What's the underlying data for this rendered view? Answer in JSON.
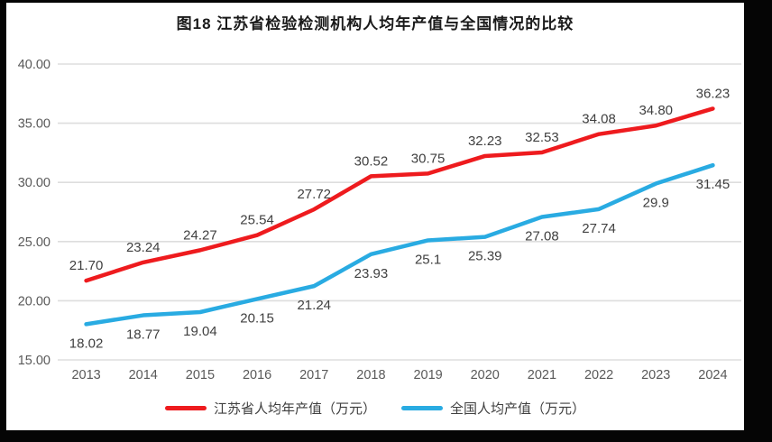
{
  "chart_data": {
    "type": "line",
    "title": "图18  江苏省检验检测机构人均年产值与全国情况的比较",
    "categories": [
      "2013",
      "2014",
      "2015",
      "2016",
      "2017",
      "2018",
      "2019",
      "2020",
      "2021",
      "2022",
      "2023",
      "2024"
    ],
    "series": [
      {
        "name": "江苏省人均年产值（万元）",
        "color": "#ee1b1e",
        "values": [
          21.7,
          23.24,
          24.27,
          25.54,
          27.72,
          30.52,
          30.75,
          32.23,
          32.53,
          34.08,
          34.8,
          36.23
        ],
        "labels": [
          "21.70",
          "23.24",
          "24.27",
          "25.54",
          "27.72",
          "30.52",
          "30.75",
          "32.23",
          "32.53",
          "34.08",
          "34.80",
          "36.23"
        ],
        "label_position": "above"
      },
      {
        "name": "全国人均产值（万元）",
        "color": "#29abe2",
        "values": [
          18.02,
          18.77,
          19.04,
          20.15,
          21.24,
          23.93,
          25.1,
          25.39,
          27.08,
          27.74,
          29.9,
          31.45
        ],
        "labels": [
          "18.02",
          "18.77",
          "19.04",
          "20.15",
          "21.24",
          "23.93",
          "25.1",
          "25.39",
          "27.08",
          "27.74",
          "29.9",
          "31.45"
        ],
        "label_position": "below"
      }
    ],
    "ylim": [
      15,
      40
    ],
    "yticks": [
      {
        "value": 40,
        "label": "40.00"
      },
      {
        "value": 35,
        "label": "35.00"
      },
      {
        "value": 30,
        "label": "30.00"
      },
      {
        "value": 25,
        "label": "25.00"
      },
      {
        "value": 20,
        "label": "20.00"
      },
      {
        "value": 15,
        "label": "15.00"
      }
    ],
    "xlabel": "",
    "ylabel": "",
    "grid": true,
    "legend_position": "bottom",
    "axis_label_color": "#595959",
    "data_label_color": "#404040",
    "gridline_color": "#dedede"
  }
}
